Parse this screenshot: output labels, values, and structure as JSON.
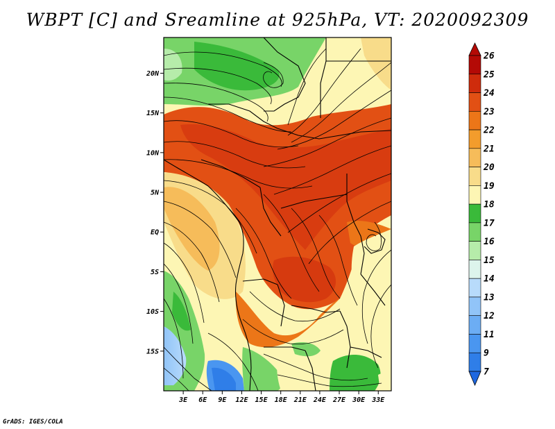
{
  "title": "WBPT [C] and Sreamline at 925hPa, VT: 2020092309",
  "footer": "GrADS: IGES/COLA",
  "map": {
    "lon_range": [
      0,
      35
    ],
    "lat_range": [
      -20,
      24.5
    ],
    "x_ticks": [
      {
        "value": 3,
        "label": "3E"
      },
      {
        "value": 6,
        "label": "6E"
      },
      {
        "value": 9,
        "label": "9E"
      },
      {
        "value": 12,
        "label": "12E"
      },
      {
        "value": 15,
        "label": "15E"
      },
      {
        "value": 18,
        "label": "18E"
      },
      {
        "value": 21,
        "label": "21E"
      },
      {
        "value": 24,
        "label": "24E"
      },
      {
        "value": 27,
        "label": "27E"
      },
      {
        "value": 30,
        "label": "30E"
      },
      {
        "value": 33,
        "label": "33E"
      }
    ],
    "y_ticks": [
      {
        "value": 20,
        "label": "20N"
      },
      {
        "value": 15,
        "label": "15N"
      },
      {
        "value": 10,
        "label": "10N"
      },
      {
        "value": 5,
        "label": "5N"
      },
      {
        "value": 0,
        "label": "EQ"
      },
      {
        "value": -5,
        "label": "5S"
      },
      {
        "value": -10,
        "label": "10S"
      },
      {
        "value": -15,
        "label": "15S"
      }
    ]
  },
  "colorbar": {
    "levels": [
      {
        "label": "7",
        "color": "#1f68e0"
      },
      {
        "label": "9",
        "color": "#2f7ee8"
      },
      {
        "label": "11",
        "color": "#4a96f0"
      },
      {
        "label": "12",
        "color": "#6cadf4"
      },
      {
        "label": "13",
        "color": "#91c4f8"
      },
      {
        "label": "14",
        "color": "#b8dbfb"
      },
      {
        "label": "15",
        "color": "#ddf4ec"
      },
      {
        "label": "16",
        "color": "#b6ecaa"
      },
      {
        "label": "17",
        "color": "#78d468"
      },
      {
        "label": "18",
        "color": "#3aba3a"
      },
      {
        "label": "19",
        "color": "#fdf6b4"
      },
      {
        "label": "20",
        "color": "#f8dc8a"
      },
      {
        "label": "21",
        "color": "#f6bc5a"
      },
      {
        "label": "22",
        "color": "#f39c2c"
      },
      {
        "label": "23",
        "color": "#ec7618"
      },
      {
        "label": "24",
        "color": "#e25014"
      },
      {
        "label": "25",
        "color": "#cf2c0c"
      },
      {
        "label": "26",
        "color": "#b40a06"
      }
    ],
    "under_color": "#1f68e0",
    "over_color": "#b40a06"
  }
}
